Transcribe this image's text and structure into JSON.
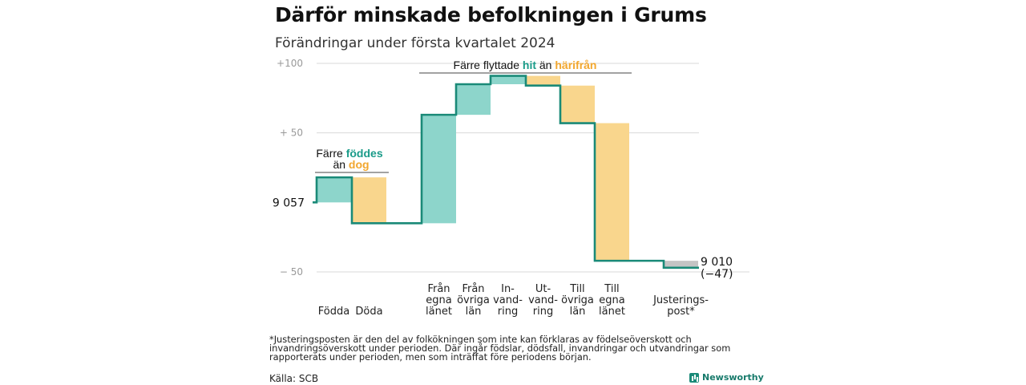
{
  "title": "Därför minskade befolkningen i Grums",
  "subtitle": "Förändringar under första kvartalet 2024",
  "colors": {
    "inflow": "#8dd5cb",
    "outflow": "#f9d68d",
    "adjustment": "#c4c4c4",
    "line": "#1a8a78",
    "accent_teal": "#1a9b89",
    "accent_orange": "#f2a72e",
    "grid": "#d9d9d9",
    "tick": "#999999"
  },
  "annotations": {
    "births": {
      "line1": "Färre ",
      "highlight1": "föddes",
      "prefix2": "än ",
      "highlight2": "dog"
    },
    "migration": {
      "prefix": "Färre flyttade ",
      "highlight1": "hit",
      "middle": " än ",
      "highlight2": "härifrån"
    }
  },
  "footnote": "*Justeringsposten är den del av folkökningen som inte kan förklaras av födelseöverskott och invandringsöverskott under perioden. Där ingår födslar, dödsfall, invandringar och utvandringar som rapporterats under perioden, men som inträffat före periodens början.",
  "source": "Källa: SCB",
  "brand": "Newsworthy",
  "chart_data": {
    "type": "bar",
    "subtype": "waterfall",
    "start_label": "9 057",
    "start_value": 9057,
    "end_label_line1": "9 010",
    "end_label_line2": "(−47)",
    "end_value": 9010,
    "y_relative_range": [
      -50,
      100
    ],
    "y_ticks": [
      {
        "value": 100,
        "label": "+100"
      },
      {
        "value": 50,
        "label": "+  50"
      },
      {
        "value": -50,
        "label": "−  50"
      }
    ],
    "grid": true,
    "categories": [
      {
        "label": [
          "Födda"
        ],
        "delta": 18,
        "kind": "inflow"
      },
      {
        "label": [
          "Döda"
        ],
        "delta": -33,
        "kind": "outflow"
      },
      {
        "label": [
          "Från",
          "egna",
          "länet"
        ],
        "delta": 78,
        "kind": "inflow"
      },
      {
        "label": [
          "Från",
          "övriga",
          "län"
        ],
        "delta": 22,
        "kind": "inflow"
      },
      {
        "label": [
          "In-",
          "vand-",
          "ring"
        ],
        "delta": 6,
        "kind": "inflow"
      },
      {
        "label": [
          "Ut-",
          "vand-",
          "ring"
        ],
        "delta": -7,
        "kind": "outflow"
      },
      {
        "label": [
          "Till",
          "övriga",
          "län"
        ],
        "delta": -27,
        "kind": "outflow"
      },
      {
        "label": [
          "Till",
          "egna",
          "länet"
        ],
        "delta": -99,
        "kind": "outflow"
      },
      {
        "label": [
          "Justerings-",
          "post*"
        ],
        "delta": -5,
        "kind": "adjustment"
      }
    ]
  }
}
